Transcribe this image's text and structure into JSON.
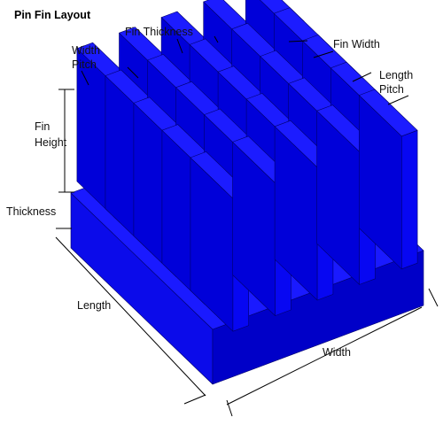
{
  "title": "Pin Fin Layout",
  "labels": {
    "fin_thickness": "Fin Thickness",
    "width_pitch_1": "Width",
    "width_pitch_2": "Pitch",
    "fin_width": "Fin Width",
    "length_pitch_1": "Length",
    "length_pitch_2": "Pitch",
    "fin_height_1": "Fin",
    "fin_height_2": "Height",
    "thickness": "Thickness",
    "length": "Length",
    "width": "Width"
  },
  "grid": {
    "rows": 5,
    "cols": 5
  },
  "colors": {
    "base_top": "#1a1aff",
    "base_left": "#0b0bea",
    "base_right": "#0000c8",
    "fin_top": "#1c1cff",
    "fin_left": "#0000d9",
    "fin_right": "#0707f2",
    "edge": "#00006a"
  }
}
